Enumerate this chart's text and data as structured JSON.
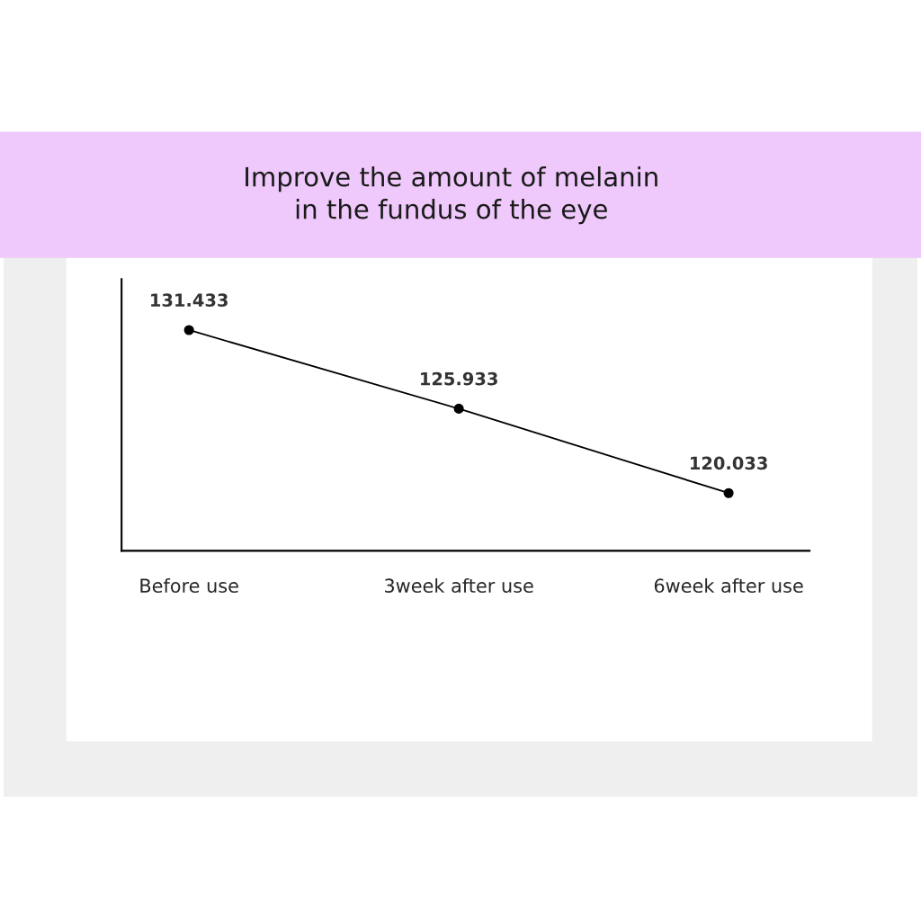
{
  "chart_data": {
    "type": "line",
    "title": "Improve the amount of melanin\nin the fundus of the eye",
    "categories": [
      "Before use",
      "3week after use",
      "6week after use"
    ],
    "series": [
      {
        "color": "#000000",
        "values": [
          131.433,
          125.933,
          120.033
        ]
      }
    ],
    "ylim": [
      116,
      135
    ],
    "data_labels": true,
    "marker": "circle",
    "line_style": "solid",
    "grid": false,
    "legend": false,
    "tick_labels": "x"
  }
}
